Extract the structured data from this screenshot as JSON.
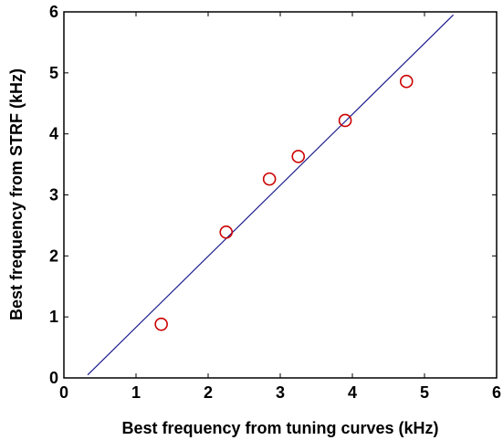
{
  "chart_data": {
    "type": "scatter",
    "xlabel": "Best frequency from tuning curves (kHz)",
    "ylabel": "Best frequency from STRF (kHz)",
    "xlim": [
      0,
      6
    ],
    "ylim": [
      0,
      6
    ],
    "xticks": [
      "0",
      "1",
      "2",
      "3",
      "4",
      "5",
      "6"
    ],
    "yticks": [
      "0",
      "1",
      "2",
      "3",
      "4",
      "5",
      "6"
    ],
    "grid": false,
    "points": [
      {
        "x": 1.35,
        "y": 0.88
      },
      {
        "x": 2.25,
        "y": 2.39
      },
      {
        "x": 2.85,
        "y": 3.26
      },
      {
        "x": 3.25,
        "y": 3.63
      },
      {
        "x": 3.9,
        "y": 4.22
      },
      {
        "x": 4.75,
        "y": 4.86
      }
    ],
    "fit_line": {
      "x": [
        0.33,
        5.4
      ],
      "y": [
        0.05,
        5.95
      ]
    },
    "colors": {
      "points": "#cc0000",
      "line": "#1a1a8c",
      "axes": "#000000"
    }
  }
}
